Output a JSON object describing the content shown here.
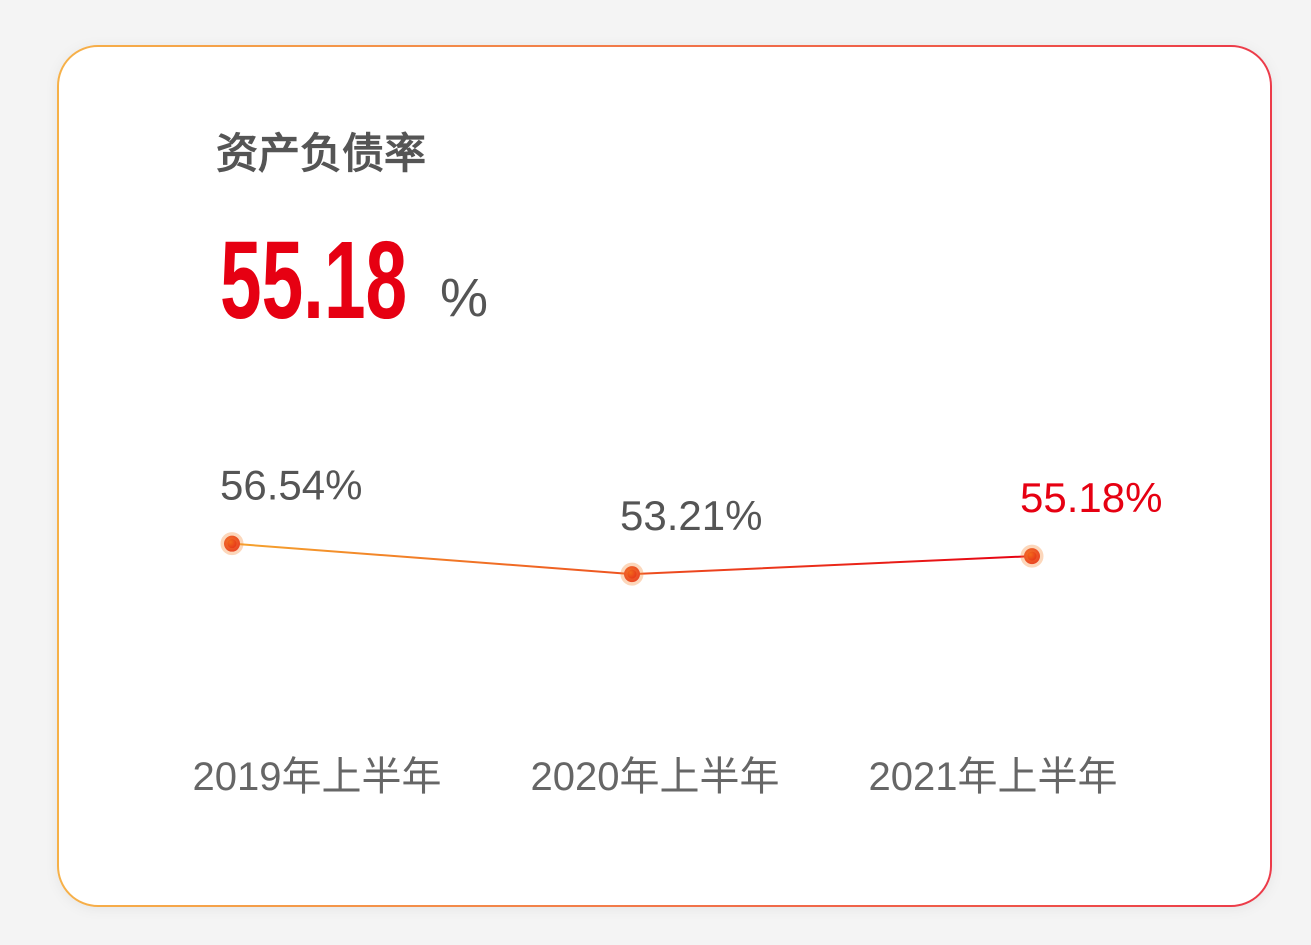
{
  "chart_data": {
    "type": "line",
    "title": "资产负债率",
    "headline_value": "55.18",
    "headline_unit": "%",
    "headline_color": "#e60012",
    "categories": [
      "2019年上半年",
      "2020年上半年",
      "2021年上半年"
    ],
    "values": [
      56.54,
      53.21,
      55.18
    ],
    "value_labels": [
      "56.54%",
      "53.21%",
      "55.18%"
    ],
    "label_colors": [
      "#555555",
      "#555555",
      "#e60012"
    ],
    "color": [
      "#f5a42e",
      "#e60012"
    ],
    "ylim": [
      40,
      60
    ]
  }
}
